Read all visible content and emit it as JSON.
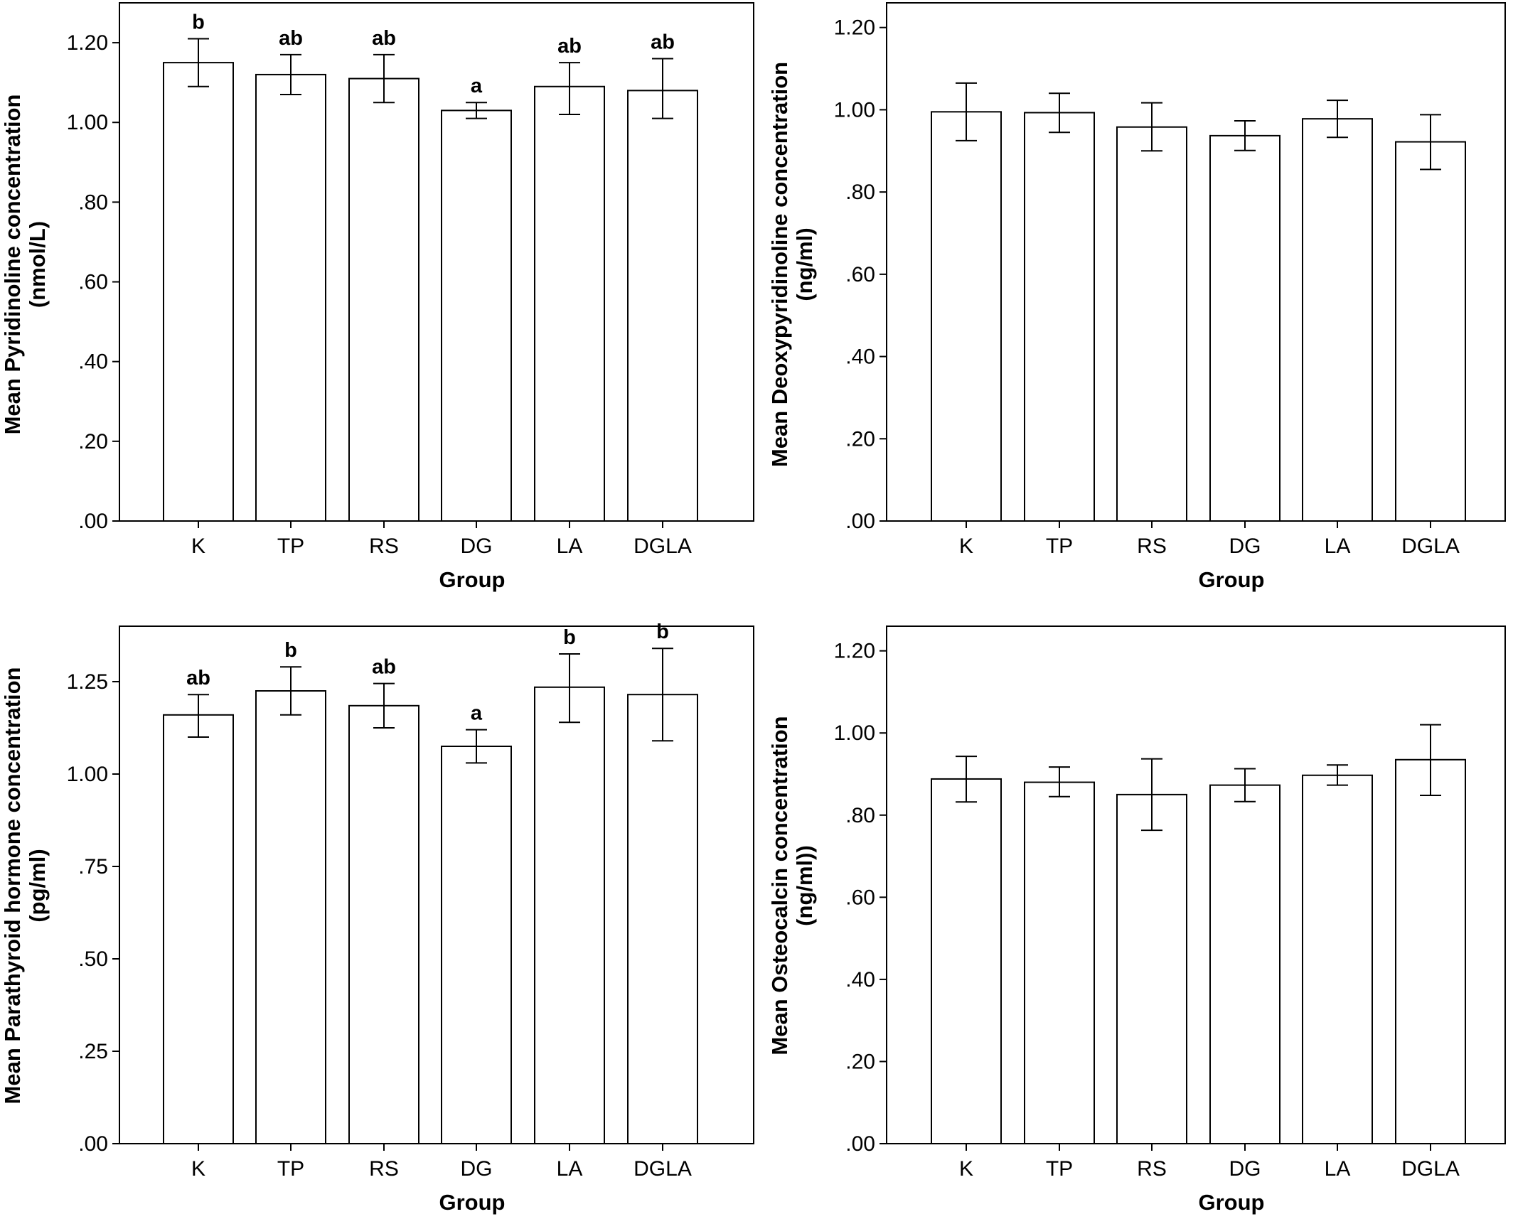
{
  "chart_data": [
    {
      "type": "bar",
      "categories": [
        "K",
        "TP",
        "RS",
        "DG",
        "LA",
        "DGLA"
      ],
      "values": [
        1.15,
        1.12,
        1.11,
        1.03,
        1.09,
        1.08
      ],
      "error_low": [
        1.09,
        1.07,
        1.05,
        1.01,
        1.02,
        1.01
      ],
      "error_high": [
        1.21,
        1.17,
        1.17,
        1.05,
        1.15,
        1.16
      ],
      "significance": [
        "b",
        "ab",
        "ab",
        "a",
        "ab",
        "ab"
      ],
      "ylabel_line1": "Mean Pyridinoline concentration",
      "ylabel_line2": "(nmol/L)",
      "xlabel": "Group",
      "ylim": [
        0,
        1.3
      ],
      "yticks": [
        0,
        0.2,
        0.4,
        0.6,
        0.8,
        1.0,
        1.2
      ],
      "ytick_labels": [
        ".00",
        ".20",
        ".40",
        ".60",
        ".80",
        "1.00",
        "1.20"
      ],
      "grid": false
    },
    {
      "type": "bar",
      "categories": [
        "K",
        "TP",
        "RS",
        "DG",
        "LA",
        "DGLA"
      ],
      "values": [
        0.995,
        0.993,
        0.958,
        0.937,
        0.978,
        0.922
      ],
      "error_low": [
        0.925,
        0.945,
        0.9,
        0.901,
        0.933,
        0.855
      ],
      "error_high": [
        1.065,
        1.04,
        1.017,
        0.973,
        1.023,
        0.988
      ],
      "significance": [],
      "ylabel_line1": "Mean Deoxypyridinoline concentration",
      "ylabel_line2": "(ng/ml)",
      "xlabel": "Group",
      "ylim": [
        0,
        1.26
      ],
      "yticks": [
        0,
        0.2,
        0.4,
        0.6,
        0.8,
        1.0,
        1.2
      ],
      "ytick_labels": [
        ".00",
        ".20",
        ".40",
        ".60",
        ".80",
        "1.00",
        "1.20"
      ],
      "grid": false
    },
    {
      "type": "bar",
      "categories": [
        "K",
        "TP",
        "RS",
        "DG",
        "LA",
        "DGLA"
      ],
      "values": [
        1.16,
        1.225,
        1.185,
        1.075,
        1.235,
        1.215
      ],
      "error_low": [
        1.1,
        1.16,
        1.125,
        1.03,
        1.14,
        1.09
      ],
      "error_high": [
        1.215,
        1.29,
        1.245,
        1.12,
        1.325,
        1.34
      ],
      "significance": [
        "ab",
        "b",
        "ab",
        "a",
        "b",
        "b"
      ],
      "ylabel_line1": "Mean Parathyroid hormone concentration",
      "ylabel_line2": "(pg/ml)",
      "xlabel": "Group",
      "ylim": [
        0,
        1.4
      ],
      "yticks": [
        0,
        0.25,
        0.5,
        0.75,
        1.0,
        1.25
      ],
      "ytick_labels": [
        ".00",
        ".25",
        ".50",
        ".75",
        "1.00",
        "1.25"
      ],
      "grid": false
    },
    {
      "type": "bar",
      "categories": [
        "K",
        "TP",
        "RS",
        "DG",
        "LA",
        "DGLA"
      ],
      "values": [
        0.888,
        0.88,
        0.85,
        0.873,
        0.897,
        0.935
      ],
      "error_low": [
        0.832,
        0.845,
        0.763,
        0.833,
        0.873,
        0.848
      ],
      "error_high": [
        0.943,
        0.917,
        0.937,
        0.913,
        0.922,
        1.02
      ],
      "significance": [],
      "ylabel_line1": "Mean Osteocalcin concentration",
      "ylabel_line2": "(ng/ml))",
      "xlabel": "Group",
      "ylim": [
        0,
        1.26
      ],
      "yticks": [
        0,
        0.2,
        0.4,
        0.6,
        0.8,
        1.0,
        1.2
      ],
      "ytick_labels": [
        ".00",
        ".20",
        ".40",
        ".60",
        ".80",
        "1.00",
        "1.20"
      ],
      "grid": false
    }
  ],
  "colors": {
    "bar_fill": "#ffffff",
    "bar_stroke": "#000000",
    "frame": "#000000"
  }
}
